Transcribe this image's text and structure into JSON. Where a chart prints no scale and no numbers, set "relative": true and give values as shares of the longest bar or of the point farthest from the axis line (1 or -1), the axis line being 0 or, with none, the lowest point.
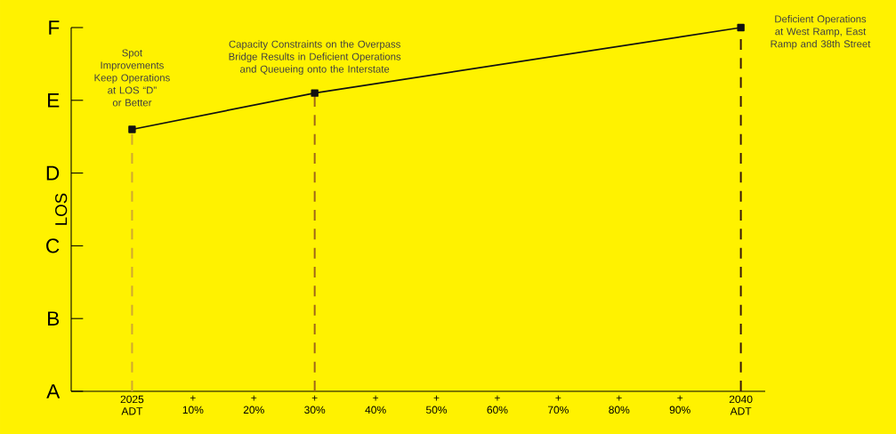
{
  "chart_data": {
    "type": "line",
    "ylabel": "LOS",
    "relative": true,
    "categories": [
      "2025 ADT",
      "+ 10%",
      "+ 20%",
      "+ 30%",
      "+ 40%",
      "+ 50%",
      "+ 60%",
      "+ 70%",
      "+ 80%",
      "+ 90%",
      "2040 ADT"
    ],
    "series": [
      {
        "color": "#111111",
        "values": [
          0.72,
          null,
          null,
          0.82,
          null,
          null,
          null,
          null,
          null,
          null,
          1.0
        ]
      }
    ],
    "marker": "square",
    "line_style": "solid",
    "ref_lines": [
      {
        "axis": "x",
        "value": "2025 ADT",
        "color": "#d0a830",
        "line_style": "dashed"
      },
      {
        "axis": "x",
        "value": "+ 30%",
        "color": "#a06818",
        "line_style": "dashed"
      },
      {
        "axis": "x",
        "value": "2040 ADT",
        "color": "#3a1a08",
        "line_style": "dashed"
      }
    ],
    "annotations": [
      "A",
      "B",
      "C",
      "D",
      "E",
      "F",
      {
        "text": "Spot Improvements Keep Operations at LOS “D” or Better",
        "x": "2025 ADT",
        "y": 0.72
      },
      {
        "text": "Capacity Constraints on the Overpass Bridge Results in Deficient Operations and Queueing onto the Interstate",
        "x": "+ 30%",
        "y": 0.82
      },
      {
        "text": "Deficient Operations at West Ramp, East Ramp and 38th Street",
        "x": "2040 ADT",
        "y": 1.0
      }
    ]
  }
}
